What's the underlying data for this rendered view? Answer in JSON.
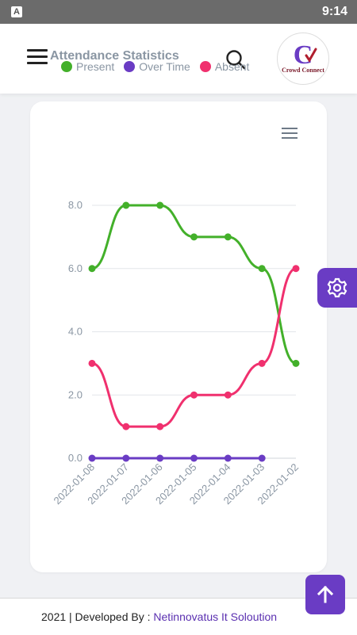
{
  "status_bar": {
    "time": "9:14",
    "app_icon_letter": "A"
  },
  "header": {
    "menu_icon": "hamburger-menu-icon",
    "search_icon": "search-icon",
    "logo": {
      "initial": "C",
      "text": "Crowd Connect"
    }
  },
  "chart_data": {
    "type": "line",
    "title": "Attendance Statistics",
    "categories": [
      "2022-01-08",
      "2022-01-07",
      "2022-01-06",
      "2022-01-05",
      "2022-01-04",
      "2022-01-03",
      "2022-01-02"
    ],
    "series": [
      {
        "name": "Present",
        "color": "#43b02a",
        "values": [
          6,
          8,
          8,
          7,
          7,
          6,
          3
        ]
      },
      {
        "name": "Over Time",
        "color": "#6a3cc4",
        "values": [
          0,
          0,
          0,
          0,
          0,
          0,
          null
        ]
      },
      {
        "name": "Absent",
        "color": "#f0306e",
        "values": [
          3,
          1,
          1,
          2,
          2,
          3,
          6
        ]
      }
    ],
    "y_ticks": [
      "0.0",
      "2.0",
      "4.0",
      "6.0",
      "8.0"
    ],
    "ylim": [
      0,
      8
    ],
    "grid": true,
    "legend_position": "top",
    "menu_icon": "chart-menu-icon"
  },
  "settings_fab": {
    "icon": "gear-icon",
    "color": "#6a3cc4"
  },
  "scroll_top": {
    "icon": "arrow-up-icon"
  },
  "footer": {
    "prefix": "2021 | Developed By : ",
    "link": "Netinnovatus It Soloution"
  }
}
